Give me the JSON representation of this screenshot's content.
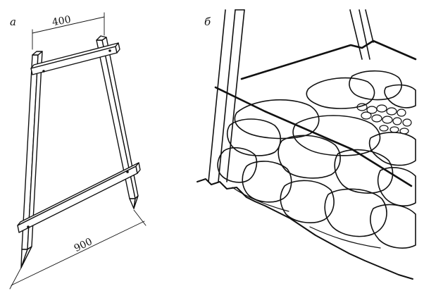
{
  "panels": {
    "a": {
      "label": "а"
    },
    "b": {
      "label": "б"
    }
  },
  "dimensions": {
    "top_width": "400",
    "bottom_width": "900"
  },
  "colors": {
    "ink": "#111111",
    "paper": "#ffffff"
  }
}
